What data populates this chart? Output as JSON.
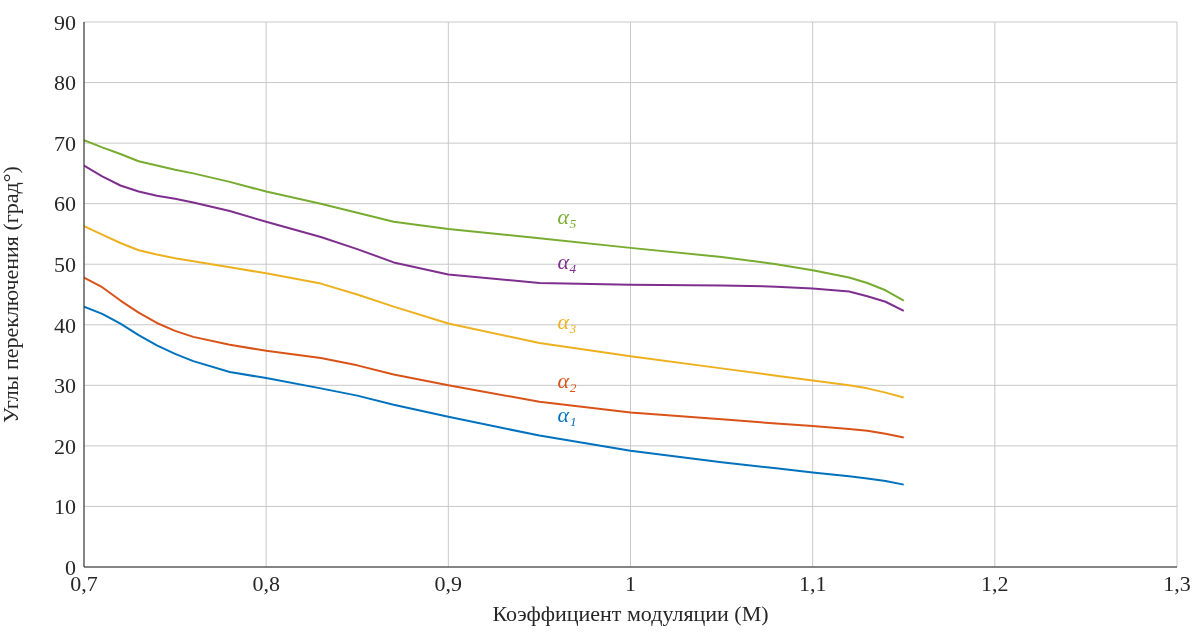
{
  "chart_data": {
    "type": "line",
    "xlabel": "Коэффициент модуляции (M)",
    "ylabel": "Углы переключения (град°)",
    "x": [
      0.7,
      0.71,
      0.72,
      0.73,
      0.74,
      0.75,
      0.76,
      0.78,
      0.8,
      0.83,
      0.85,
      0.87,
      0.9,
      0.95,
      1.0,
      1.05,
      1.08,
      1.1,
      1.12,
      1.13,
      1.14,
      1.15
    ],
    "series": [
      {
        "name": "α₁",
        "color": "#0072bd",
        "values": [
          43.0,
          41.8,
          40.2,
          38.3,
          36.6,
          35.2,
          34.0,
          32.2,
          31.2,
          29.5,
          28.3,
          26.8,
          24.8,
          21.7,
          19.2,
          17.3,
          16.3,
          15.6,
          15.0,
          14.6,
          14.2,
          13.6
        ]
      },
      {
        "name": "α₂",
        "color": "#d95319",
        "values": [
          47.8,
          46.2,
          44.0,
          42.0,
          40.3,
          39.0,
          38.0,
          36.7,
          35.7,
          34.5,
          33.3,
          31.8,
          30.0,
          27.3,
          25.5,
          24.4,
          23.7,
          23.3,
          22.8,
          22.5,
          22.0,
          21.4
        ]
      },
      {
        "name": "α₃",
        "color": "#edb120",
        "values": [
          56.3,
          54.9,
          53.5,
          52.3,
          51.6,
          51.0,
          50.5,
          49.5,
          48.5,
          46.8,
          45.0,
          43.0,
          40.2,
          37.0,
          34.8,
          32.8,
          31.6,
          30.8,
          30.0,
          29.5,
          28.8,
          28.0
        ]
      },
      {
        "name": "α₄",
        "color": "#7e2f8e",
        "values": [
          66.3,
          64.5,
          63.0,
          62.0,
          61.3,
          60.8,
          60.2,
          58.8,
          57.0,
          54.5,
          52.5,
          50.3,
          48.3,
          46.9,
          46.6,
          46.5,
          46.3,
          46.0,
          45.5,
          44.7,
          43.8,
          42.3
        ]
      },
      {
        "name": "α₅",
        "color": "#77ac30",
        "values": [
          70.5,
          69.3,
          68.2,
          67.0,
          66.3,
          65.6,
          65.0,
          63.6,
          62.0,
          60.0,
          58.5,
          57.0,
          55.8,
          54.3,
          52.7,
          51.2,
          50.0,
          49.0,
          47.8,
          46.9,
          45.7,
          44.0
        ]
      }
    ],
    "xlim": [
      0.7,
      1.3
    ],
    "xticks": [
      {
        "value": 0.7,
        "label": "0,7"
      },
      {
        "value": 0.8,
        "label": "0,8"
      },
      {
        "value": 0.9,
        "label": "0,9"
      },
      {
        "value": 1.0,
        "label": "1"
      },
      {
        "value": 1.1,
        "label": "1,1"
      },
      {
        "value": 1.2,
        "label": "1,2"
      },
      {
        "value": 1.3,
        "label": "1,3"
      }
    ],
    "ylim": [
      0,
      90
    ],
    "yticks": [
      0,
      10,
      20,
      30,
      40,
      50,
      60,
      70,
      80,
      90
    ],
    "grid": true,
    "legend": false,
    "marker": "none",
    "line_style": "solid"
  }
}
